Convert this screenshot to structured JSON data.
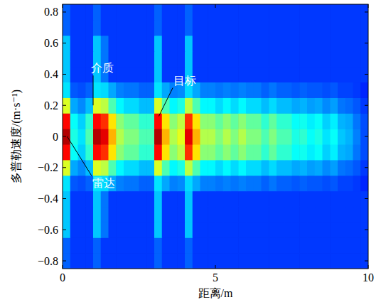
{
  "chart_data": {
    "type": "heatmap",
    "x_label": "距离/m",
    "y_label": "多普勒速度/(m·s⁻¹)",
    "xlim": [
      0,
      10
    ],
    "xticks": [
      0,
      5,
      10
    ],
    "ylim": [
      -0.85,
      0.85
    ],
    "yticks": [
      {
        "value": -0.8,
        "label": "−0.8"
      },
      {
        "value": -0.6,
        "label": "−0.6"
      },
      {
        "value": -0.4,
        "label": "−0.4"
      },
      {
        "value": -0.2,
        "label": "−0.2"
      },
      0,
      0.2,
      0.4,
      0.6,
      0.8
    ],
    "zlim": [
      0,
      1
    ],
    "x": [
      0.125,
      0.375,
      0.625,
      0.875,
      1.125,
      1.375,
      1.625,
      1.875,
      2.125,
      2.375,
      2.625,
      2.875,
      3.125,
      3.375,
      3.625,
      3.875,
      4.125,
      4.375,
      4.625,
      4.875,
      5.125,
      5.375,
      5.625,
      5.875,
      6.125,
      6.375,
      6.625,
      6.875,
      7.125,
      7.375,
      7.625,
      7.875,
      8.125,
      8.375,
      8.625,
      8.875,
      9.125,
      9.375,
      9.625,
      9.875
    ],
    "y": [
      -0.8,
      -0.7,
      -0.6,
      -0.5,
      -0.4,
      -0.3,
      -0.2,
      -0.1,
      0,
      0.1,
      0.2,
      0.3,
      0.4,
      0.5,
      0.6,
      0.7,
      0.8
    ],
    "values": [
      [
        0.22,
        0.18,
        0.18,
        0.18,
        0.22,
        0.18,
        0.18,
        0.18,
        0.18,
        0.18,
        0.18,
        0.18,
        0.22,
        0.18,
        0.18,
        0.18,
        0.22,
        0.18,
        0.18,
        0.18,
        0.18,
        0.18,
        0.18,
        0.18,
        0.18,
        0.18,
        0.18,
        0.18,
        0.18,
        0.18,
        0.18,
        0.18,
        0.18,
        0.18,
        0.18,
        0.18,
        0.18,
        0.18,
        0.18,
        0.18
      ],
      [
        0.22,
        0.18,
        0.18,
        0.18,
        0.22,
        0.18,
        0.18,
        0.18,
        0.18,
        0.18,
        0.18,
        0.18,
        0.22,
        0.18,
        0.18,
        0.18,
        0.22,
        0.18,
        0.18,
        0.18,
        0.18,
        0.18,
        0.18,
        0.18,
        0.18,
        0.18,
        0.18,
        0.18,
        0.18,
        0.18,
        0.18,
        0.18,
        0.18,
        0.18,
        0.18,
        0.18,
        0.18,
        0.18,
        0.18,
        0.18
      ],
      [
        0.32,
        0.18,
        0.18,
        0.18,
        0.32,
        0.24,
        0.18,
        0.18,
        0.18,
        0.18,
        0.18,
        0.18,
        0.32,
        0.18,
        0.18,
        0.18,
        0.32,
        0.18,
        0.18,
        0.18,
        0.18,
        0.18,
        0.18,
        0.18,
        0.18,
        0.18,
        0.18,
        0.18,
        0.18,
        0.18,
        0.18,
        0.18,
        0.18,
        0.18,
        0.18,
        0.18,
        0.18,
        0.18,
        0.18,
        0.18
      ],
      [
        0.32,
        0.18,
        0.18,
        0.18,
        0.32,
        0.24,
        0.18,
        0.18,
        0.18,
        0.18,
        0.18,
        0.18,
        0.32,
        0.18,
        0.18,
        0.18,
        0.32,
        0.18,
        0.18,
        0.18,
        0.18,
        0.18,
        0.18,
        0.18,
        0.18,
        0.18,
        0.18,
        0.18,
        0.18,
        0.18,
        0.18,
        0.18,
        0.18,
        0.18,
        0.18,
        0.18,
        0.18,
        0.18,
        0.18,
        0.18
      ],
      [
        0.32,
        0.18,
        0.18,
        0.18,
        0.32,
        0.24,
        0.18,
        0.18,
        0.18,
        0.18,
        0.18,
        0.18,
        0.32,
        0.18,
        0.18,
        0.18,
        0.32,
        0.18,
        0.18,
        0.18,
        0.18,
        0.18,
        0.18,
        0.18,
        0.18,
        0.18,
        0.18,
        0.18,
        0.18,
        0.18,
        0.18,
        0.18,
        0.18,
        0.18,
        0.18,
        0.18,
        0.18,
        0.18,
        0.18,
        0.18
      ],
      [
        0.35,
        0.21,
        0.2,
        0.22,
        0.35,
        0.34,
        0.29,
        0.25,
        0.24,
        0.24,
        0.22,
        0.22,
        0.35,
        0.29,
        0.25,
        0.26,
        0.34,
        0.29,
        0.25,
        0.25,
        0.24,
        0.25,
        0.24,
        0.25,
        0.24,
        0.24,
        0.22,
        0.24,
        0.22,
        0.22,
        0.21,
        0.22,
        0.21,
        0.21,
        0.2,
        0.21,
        0.19,
        0.19,
        0.18,
        0.16
      ],
      [
        0.59,
        0.29,
        0.26,
        0.31,
        0.59,
        0.56,
        0.45,
        0.37,
        0.34,
        0.34,
        0.31,
        0.31,
        0.59,
        0.45,
        0.37,
        0.4,
        0.56,
        0.45,
        0.37,
        0.37,
        0.34,
        0.37,
        0.34,
        0.37,
        0.34,
        0.34,
        0.31,
        0.34,
        0.31,
        0.31,
        0.29,
        0.3,
        0.28,
        0.29,
        0.26,
        0.28,
        0.24,
        0.23,
        0.21,
        0.18
      ],
      [
        0.87,
        0.38,
        0.33,
        0.42,
        0.87,
        0.83,
        0.65,
        0.51,
        0.47,
        0.47,
        0.42,
        0.42,
        0.87,
        0.65,
        0.51,
        0.56,
        0.83,
        0.65,
        0.51,
        0.51,
        0.47,
        0.51,
        0.47,
        0.51,
        0.47,
        0.47,
        0.42,
        0.47,
        0.42,
        0.42,
        0.38,
        0.39,
        0.36,
        0.38,
        0.33,
        0.36,
        0.3,
        0.29,
        0.24,
        0.2
      ],
      [
        0.95,
        0.4,
        0.35,
        0.45,
        0.95,
        0.9,
        0.7,
        0.55,
        0.5,
        0.5,
        0.45,
        0.45,
        0.95,
        0.7,
        0.55,
        0.6,
        0.9,
        0.7,
        0.55,
        0.55,
        0.5,
        0.55,
        0.5,
        0.55,
        0.5,
        0.5,
        0.45,
        0.5,
        0.45,
        0.45,
        0.4,
        0.42,
        0.38,
        0.4,
        0.35,
        0.38,
        0.32,
        0.3,
        0.25,
        0.2
      ],
      [
        0.87,
        0.38,
        0.33,
        0.42,
        0.87,
        0.83,
        0.65,
        0.51,
        0.47,
        0.47,
        0.42,
        0.42,
        0.87,
        0.65,
        0.51,
        0.56,
        0.83,
        0.65,
        0.51,
        0.51,
        0.47,
        0.51,
        0.47,
        0.51,
        0.47,
        0.47,
        0.42,
        0.47,
        0.42,
        0.42,
        0.38,
        0.39,
        0.36,
        0.38,
        0.33,
        0.36,
        0.3,
        0.29,
        0.24,
        0.2
      ],
      [
        0.59,
        0.29,
        0.26,
        0.31,
        0.59,
        0.56,
        0.45,
        0.37,
        0.34,
        0.34,
        0.31,
        0.31,
        0.59,
        0.45,
        0.37,
        0.4,
        0.56,
        0.45,
        0.37,
        0.37,
        0.34,
        0.37,
        0.34,
        0.37,
        0.34,
        0.34,
        0.31,
        0.34,
        0.31,
        0.31,
        0.29,
        0.3,
        0.28,
        0.29,
        0.26,
        0.28,
        0.24,
        0.23,
        0.21,
        0.18
      ],
      [
        0.35,
        0.21,
        0.2,
        0.22,
        0.35,
        0.34,
        0.29,
        0.25,
        0.24,
        0.24,
        0.22,
        0.22,
        0.35,
        0.29,
        0.25,
        0.26,
        0.34,
        0.29,
        0.25,
        0.25,
        0.24,
        0.25,
        0.24,
        0.25,
        0.24,
        0.24,
        0.22,
        0.24,
        0.22,
        0.22,
        0.21,
        0.22,
        0.21,
        0.21,
        0.2,
        0.21,
        0.19,
        0.19,
        0.18,
        0.16
      ],
      [
        0.32,
        0.18,
        0.18,
        0.18,
        0.32,
        0.24,
        0.18,
        0.18,
        0.18,
        0.18,
        0.18,
        0.18,
        0.32,
        0.18,
        0.18,
        0.18,
        0.32,
        0.18,
        0.18,
        0.18,
        0.18,
        0.18,
        0.18,
        0.18,
        0.18,
        0.18,
        0.18,
        0.18,
        0.18,
        0.18,
        0.18,
        0.18,
        0.18,
        0.18,
        0.18,
        0.18,
        0.18,
        0.18,
        0.18,
        0.18
      ],
      [
        0.32,
        0.18,
        0.18,
        0.18,
        0.32,
        0.24,
        0.18,
        0.18,
        0.18,
        0.18,
        0.18,
        0.18,
        0.32,
        0.18,
        0.18,
        0.18,
        0.32,
        0.18,
        0.18,
        0.18,
        0.18,
        0.18,
        0.18,
        0.18,
        0.18,
        0.18,
        0.18,
        0.18,
        0.18,
        0.18,
        0.18,
        0.18,
        0.18,
        0.18,
        0.18,
        0.18,
        0.18,
        0.18,
        0.18,
        0.18
      ],
      [
        0.32,
        0.18,
        0.18,
        0.18,
        0.32,
        0.24,
        0.18,
        0.18,
        0.18,
        0.18,
        0.18,
        0.18,
        0.32,
        0.18,
        0.18,
        0.18,
        0.32,
        0.18,
        0.18,
        0.18,
        0.18,
        0.18,
        0.18,
        0.18,
        0.18,
        0.18,
        0.18,
        0.18,
        0.18,
        0.18,
        0.18,
        0.18,
        0.18,
        0.18,
        0.18,
        0.18,
        0.18,
        0.18,
        0.18,
        0.18
      ],
      [
        0.22,
        0.18,
        0.18,
        0.18,
        0.22,
        0.18,
        0.18,
        0.18,
        0.18,
        0.18,
        0.18,
        0.18,
        0.22,
        0.18,
        0.18,
        0.18,
        0.22,
        0.18,
        0.18,
        0.18,
        0.18,
        0.18,
        0.18,
        0.18,
        0.18,
        0.18,
        0.18,
        0.18,
        0.18,
        0.18,
        0.18,
        0.18,
        0.18,
        0.18,
        0.18,
        0.18,
        0.18,
        0.18,
        0.18,
        0.18
      ],
      [
        0.22,
        0.18,
        0.18,
        0.18,
        0.22,
        0.18,
        0.18,
        0.18,
        0.18,
        0.18,
        0.18,
        0.18,
        0.22,
        0.18,
        0.18,
        0.18,
        0.22,
        0.18,
        0.18,
        0.18,
        0.18,
        0.18,
        0.18,
        0.18,
        0.18,
        0.18,
        0.18,
        0.18,
        0.18,
        0.18,
        0.18,
        0.18,
        0.18,
        0.18,
        0.18,
        0.18,
        0.18,
        0.18,
        0.18,
        0.18
      ]
    ],
    "annotations": [
      {
        "text": "介质",
        "x": 1.0,
        "y": 0.2,
        "text_x": 1.3,
        "text_y": 0.44
      },
      {
        "text": "目标",
        "x": 3.15,
        "y": 0.13,
        "text_x": 4.0,
        "text_y": 0.36
      },
      {
        "text": "雷达",
        "x": 0.15,
        "y": 0.0,
        "text_x": 1.35,
        "text_y": -0.3
      }
    ]
  }
}
